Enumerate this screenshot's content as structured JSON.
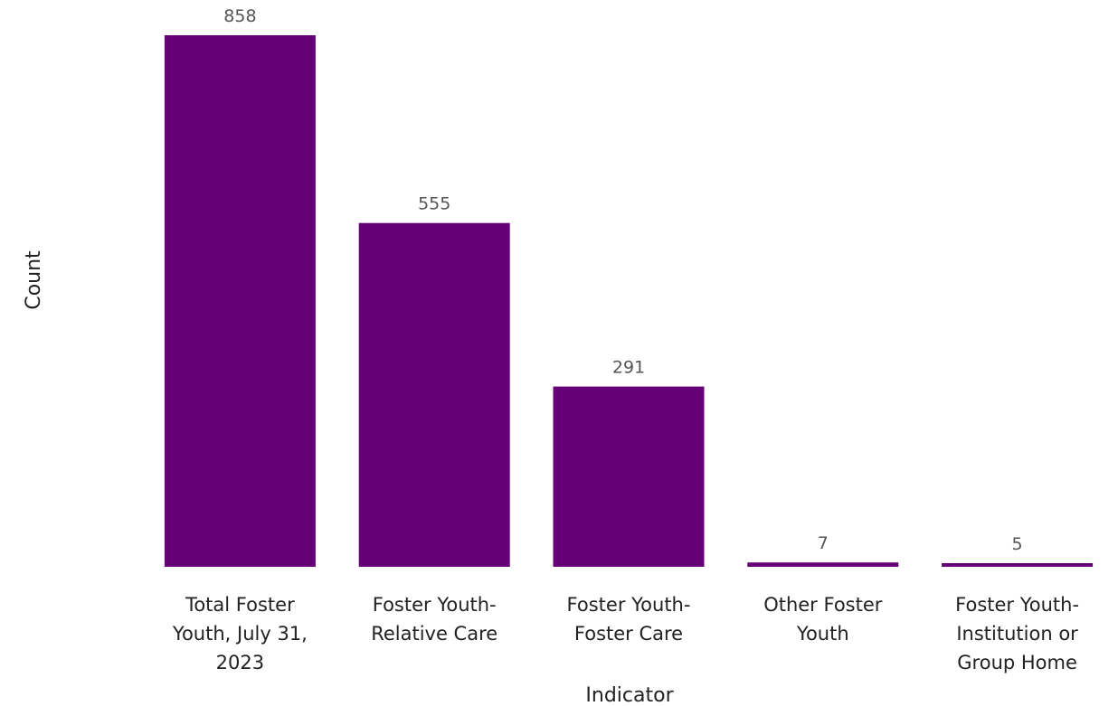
{
  "chart_data": {
    "type": "bar",
    "categories": [
      "Total Foster Youth, July 31, 2023",
      "Foster Youth-Relative Care",
      "Foster Youth-Foster Care",
      "Other Foster Youth",
      "Foster Youth-Institution or Group Home"
    ],
    "category_lines": [
      [
        "Total Foster",
        "Youth, July 31,",
        "2023"
      ],
      [
        "Foster Youth-",
        "Relative Care"
      ],
      [
        "Foster Youth-",
        "Foster Care"
      ],
      [
        "Other Foster",
        "Youth"
      ],
      [
        "Foster Youth-",
        "Institution or",
        "Group Home"
      ]
    ],
    "values": [
      858,
      555,
      291,
      7,
      5
    ],
    "value_labels": [
      "858",
      "555",
      "291",
      "7",
      "5"
    ],
    "xlabel": "Indicator",
    "ylabel": "Count",
    "ylim": [
      0,
      858
    ],
    "grid": false,
    "legend": "none",
    "bar_color": "#660077"
  }
}
